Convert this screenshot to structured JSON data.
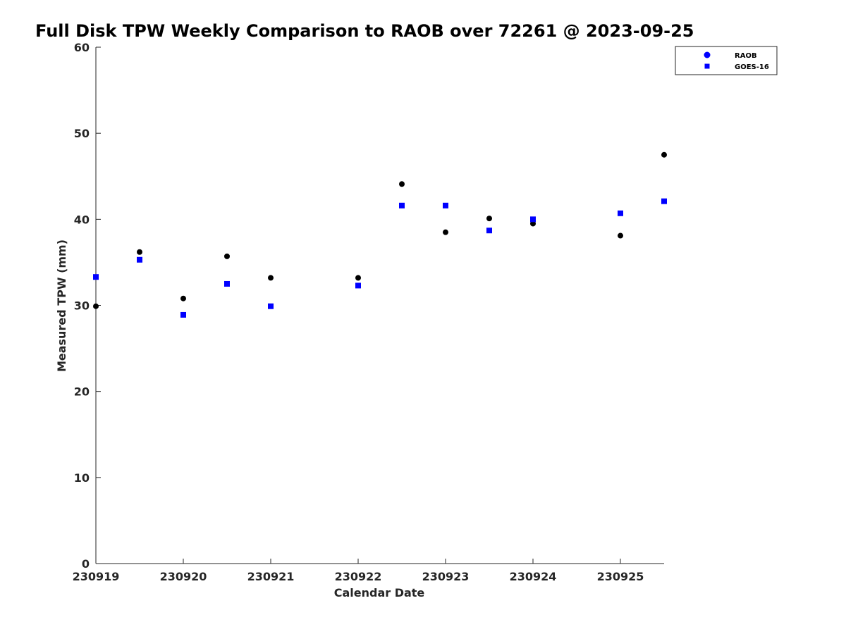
{
  "chart_data": {
    "type": "scatter",
    "title": "Full Disk TPW Weekly Comparison to RAOB over 72261 @ 2023-09-25",
    "xlabel": "Calendar Date",
    "ylabel": "Measured TPW (mm)",
    "x_tick_labels": [
      "230919",
      "230920",
      "230921",
      "230922",
      "230923",
      "230924",
      "230925"
    ],
    "xlim": [
      "2023-09-19 00:00",
      "2023-09-25 12:00"
    ],
    "y_ticks": [
      0,
      10,
      20,
      30,
      40,
      50,
      60
    ],
    "ylim": [
      0,
      60
    ],
    "grid": false,
    "legend_position": "top-right",
    "series": [
      {
        "name": "RAOB",
        "marker": "circle",
        "color": "#000000",
        "legend_color": "#0000ff",
        "points": [
          {
            "x": "2023-09-19 00:00",
            "y": 29.9
          },
          {
            "x": "2023-09-19 12:00",
            "y": 36.2
          },
          {
            "x": "2023-09-20 00:00",
            "y": 30.8
          },
          {
            "x": "2023-09-20 12:00",
            "y": 35.7
          },
          {
            "x": "2023-09-21 00:00",
            "y": 33.2
          },
          {
            "x": "2023-09-22 00:00",
            "y": 33.2
          },
          {
            "x": "2023-09-22 12:00",
            "y": 44.1
          },
          {
            "x": "2023-09-23 00:00",
            "y": 38.5
          },
          {
            "x": "2023-09-23 12:00",
            "y": 40.1
          },
          {
            "x": "2023-09-24 00:00",
            "y": 39.5
          },
          {
            "x": "2023-09-25 00:00",
            "y": 38.1
          },
          {
            "x": "2023-09-25 12:00",
            "y": 47.5
          }
        ]
      },
      {
        "name": "GOES-16",
        "marker": "square",
        "color": "#0000ff",
        "points": [
          {
            "x": "2023-09-19 00:00",
            "y": 33.3
          },
          {
            "x": "2023-09-19 12:00",
            "y": 35.3
          },
          {
            "x": "2023-09-20 00:00",
            "y": 28.9
          },
          {
            "x": "2023-09-20 12:00",
            "y": 32.5
          },
          {
            "x": "2023-09-21 00:00",
            "y": 29.9
          },
          {
            "x": "2023-09-22 00:00",
            "y": 32.3
          },
          {
            "x": "2023-09-22 12:00",
            "y": 41.6
          },
          {
            "x": "2023-09-23 00:00",
            "y": 41.6
          },
          {
            "x": "2023-09-23 12:00",
            "y": 38.7
          },
          {
            "x": "2023-09-24 00:00",
            "y": 40.0
          },
          {
            "x": "2023-09-25 00:00",
            "y": 40.7
          },
          {
            "x": "2023-09-25 12:00",
            "y": 42.1
          }
        ]
      }
    ]
  }
}
